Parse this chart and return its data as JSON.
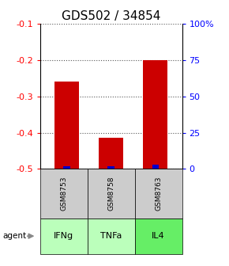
{
  "title": "GDS502 / 34854",
  "samples": [
    "GSM8753",
    "GSM8758",
    "GSM8763"
  ],
  "agents": [
    "IFNg",
    "TNFa",
    "IL4"
  ],
  "log_ratios": [
    -0.26,
    -0.415,
    -0.2
  ],
  "percentile_ranks": [
    2,
    2,
    3
  ],
  "ylim_left": [
    -0.5,
    -0.1
  ],
  "ylim_right": [
    0,
    100
  ],
  "yticks_left": [
    -0.5,
    -0.4,
    -0.3,
    -0.2,
    -0.1
  ],
  "yticks_right": [
    0,
    25,
    50,
    75,
    100
  ],
  "ytick_labels_right": [
    "0",
    "25",
    "50",
    "75",
    "100%"
  ],
  "bar_color_red": "#cc0000",
  "bar_color_blue": "#0000cc",
  "agent_colors": [
    "#bbffbb",
    "#bbffbb",
    "#66ee66"
  ],
  "sample_bg_color": "#cccccc",
  "grid_color": "#888888",
  "title_fontsize": 11,
  "tick_fontsize": 8,
  "legend_fontsize": 7,
  "bar_width": 0.55
}
